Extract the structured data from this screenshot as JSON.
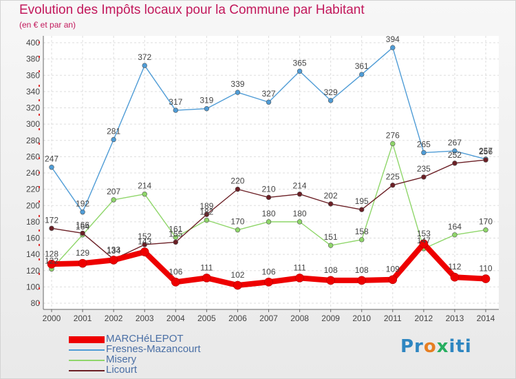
{
  "chart_data": {
    "type": "line",
    "title": "Evolution des Impôts locaux pour la Commune par Habitant",
    "subtitle": "(en € et par an)",
    "x": [
      "2000",
      "2001",
      "2002",
      "2003",
      "2004",
      "2005",
      "2006",
      "2007",
      "2008",
      "2009",
      "2010",
      "2011",
      "2012",
      "2013",
      "2014"
    ],
    "ylim": [
      80,
      400
    ],
    "yticks": [
      80,
      100,
      120,
      140,
      160,
      180,
      200,
      220,
      240,
      260,
      280,
      300,
      320,
      340,
      360,
      380,
      400
    ],
    "grid": true,
    "legend_position": "bottom-left",
    "series": [
      {
        "name": "MARCHéLEPOT",
        "color": "#ee0000",
        "values": [
          128,
          129,
          133,
          143,
          106,
          111,
          102,
          106,
          111,
          108,
          108,
          109,
          153,
          112,
          110
        ]
      },
      {
        "name": "Fresnes-Mazancourt",
        "color": "#4f9cd6",
        "values": [
          247,
          192,
          281,
          372,
          317,
          319,
          339,
          327,
          365,
          329,
          361,
          394,
          265,
          267,
          257
        ]
      },
      {
        "name": "Misery",
        "color": "#8fd66a",
        "values": [
          122,
          164,
          207,
          214,
          161,
          182,
          170,
          180,
          180,
          151,
          158,
          276,
          147,
          164,
          170
        ]
      },
      {
        "name": "Licourt",
        "color": "#6b1f25",
        "values": [
          172,
          166,
          134,
          152,
          155,
          189,
          220,
          210,
          214,
          202,
          195,
          225,
          235,
          252,
          256
        ]
      }
    ]
  },
  "logo": {
    "p1": "Pr",
    "p2": "o",
    "p3": "x",
    "p4": "iti"
  }
}
